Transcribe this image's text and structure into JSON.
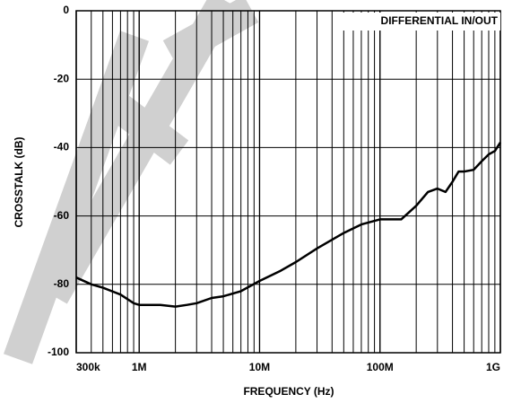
{
  "chart_data": {
    "type": "line",
    "title": "DIFFERENTIAL IN/OUT",
    "xlabel": "FREQUENCY (Hz)",
    "ylabel": "CROSSTALK (dB)",
    "xscale": "log",
    "grid": true,
    "minor_grid": true,
    "xlim": [
      300000,
      1000000000
    ],
    "ylim": [
      -100,
      0
    ],
    "xticks": [
      {
        "value": 300000,
        "label": "300k"
      },
      {
        "value": 1000000,
        "label": "1M"
      },
      {
        "value": 10000000,
        "label": "10M"
      },
      {
        "value": 100000000,
        "label": "100M"
      },
      {
        "value": 1000000000,
        "label": "1G"
      }
    ],
    "yticks": [
      -100,
      -80,
      -60,
      -40,
      -20,
      0
    ],
    "series": [
      {
        "name": "CROSSTALK",
        "color": "#000000",
        "x": [
          300000,
          400000,
          500000,
          700000,
          900000,
          1000000,
          1500000,
          2000000,
          2500000,
          3000000,
          4000000,
          5000000,
          7000000,
          10000000,
          15000000,
          20000000,
          30000000,
          50000000,
          70000000,
          100000000,
          150000000,
          200000000,
          250000000,
          300000000,
          350000000,
          400000000,
          450000000,
          500000000,
          600000000,
          700000000,
          800000000,
          900000000,
          1000000000
        ],
        "values": [
          -78,
          -80,
          -81,
          -83,
          -85.5,
          -86,
          -86,
          -86.5,
          -86,
          -85.5,
          -84,
          -83.5,
          -82,
          -79,
          -76,
          -73.5,
          -69.5,
          -65,
          -62.5,
          -61,
          -61,
          -57,
          -53,
          -52,
          -53,
          -50,
          -47,
          -47,
          -46.5,
          -44,
          -42,
          -41,
          -38.5
        ]
      }
    ]
  }
}
